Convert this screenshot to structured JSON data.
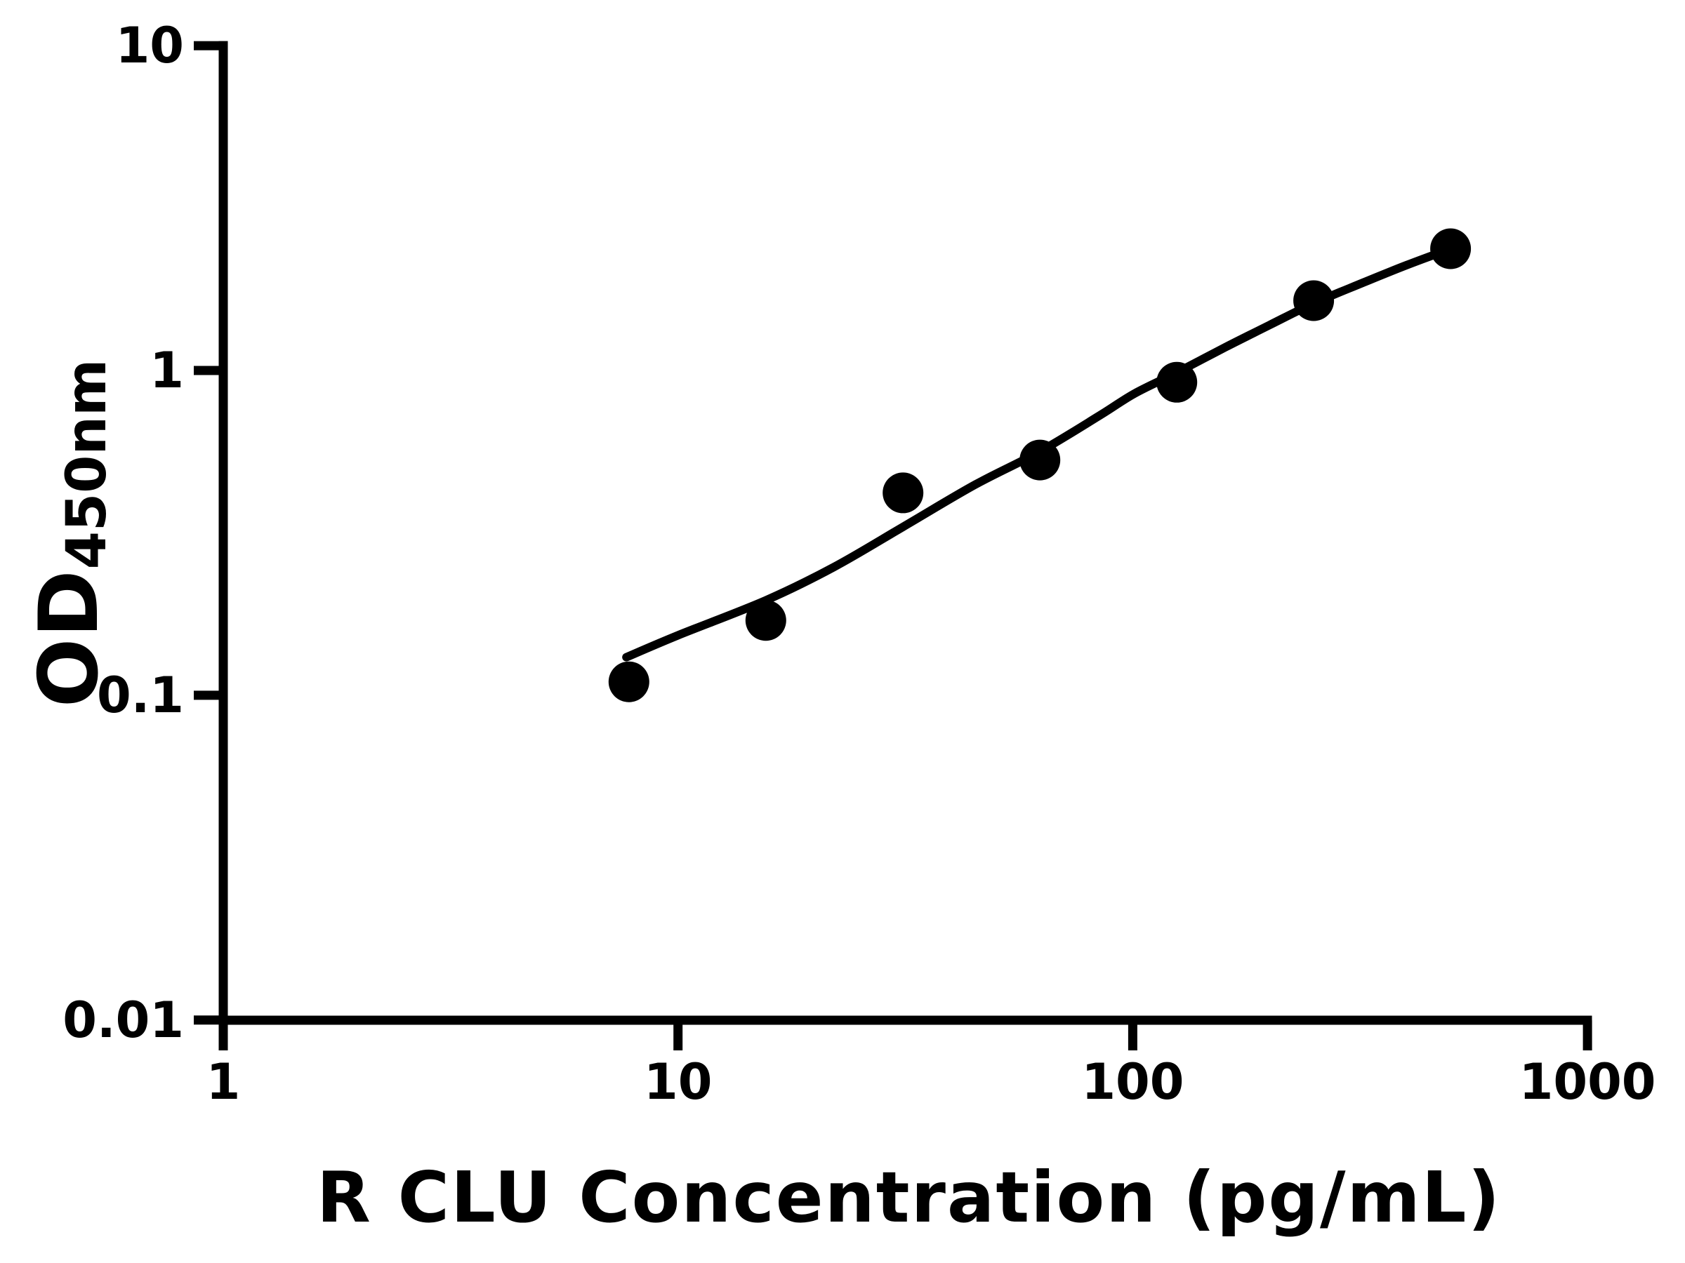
{
  "figure": {
    "background_color": "#ffffff",
    "foreground_color": "#000000"
  },
  "chart_data": {
    "type": "scatter",
    "subtype": "ELISA standard curve with fitted line",
    "title": "",
    "xlabel": "R CLU Concentration (pg/mL)",
    "ylabel": "OD450nm",
    "ylabel_parts": {
      "base": "OD",
      "subscript": "450nm"
    },
    "x_scale": "log",
    "y_scale": "log",
    "xlim": [
      1,
      1000
    ],
    "ylim": [
      0.01,
      10
    ],
    "x_ticks": [
      1,
      10,
      100,
      1000
    ],
    "x_tick_labels": [
      "1",
      "10",
      "100",
      "1000"
    ],
    "y_ticks": [
      10,
      1,
      0.1,
      0.01
    ],
    "y_tick_labels": [
      "10",
      "1",
      "0.1",
      "0.01"
    ],
    "grid": false,
    "legend": null,
    "marker_color": "#000000",
    "line_color": "#000000",
    "series": [
      {
        "name": "standards",
        "marker": "filled-circle",
        "x": [
          7.8,
          15.6,
          31.25,
          62.5,
          125,
          250,
          500
        ],
        "y": [
          0.11,
          0.17,
          0.42,
          0.53,
          0.92,
          1.64,
          2.37
        ]
      }
    ],
    "fit_curve": {
      "name": "fitted-standard-curve",
      "points": [
        [
          7.7,
          0.131
        ],
        [
          10,
          0.153
        ],
        [
          15.6,
          0.196
        ],
        [
          22,
          0.248
        ],
        [
          31.25,
          0.33
        ],
        [
          45,
          0.445
        ],
        [
          62.5,
          0.563
        ],
        [
          85,
          0.73
        ],
        [
          101,
          0.85
        ],
        [
          125,
          0.985
        ],
        [
          160,
          1.18
        ],
        [
          200,
          1.38
        ],
        [
          250,
          1.61
        ],
        [
          320,
          1.86
        ],
        [
          400,
          2.11
        ],
        [
          500,
          2.37
        ]
      ]
    }
  }
}
